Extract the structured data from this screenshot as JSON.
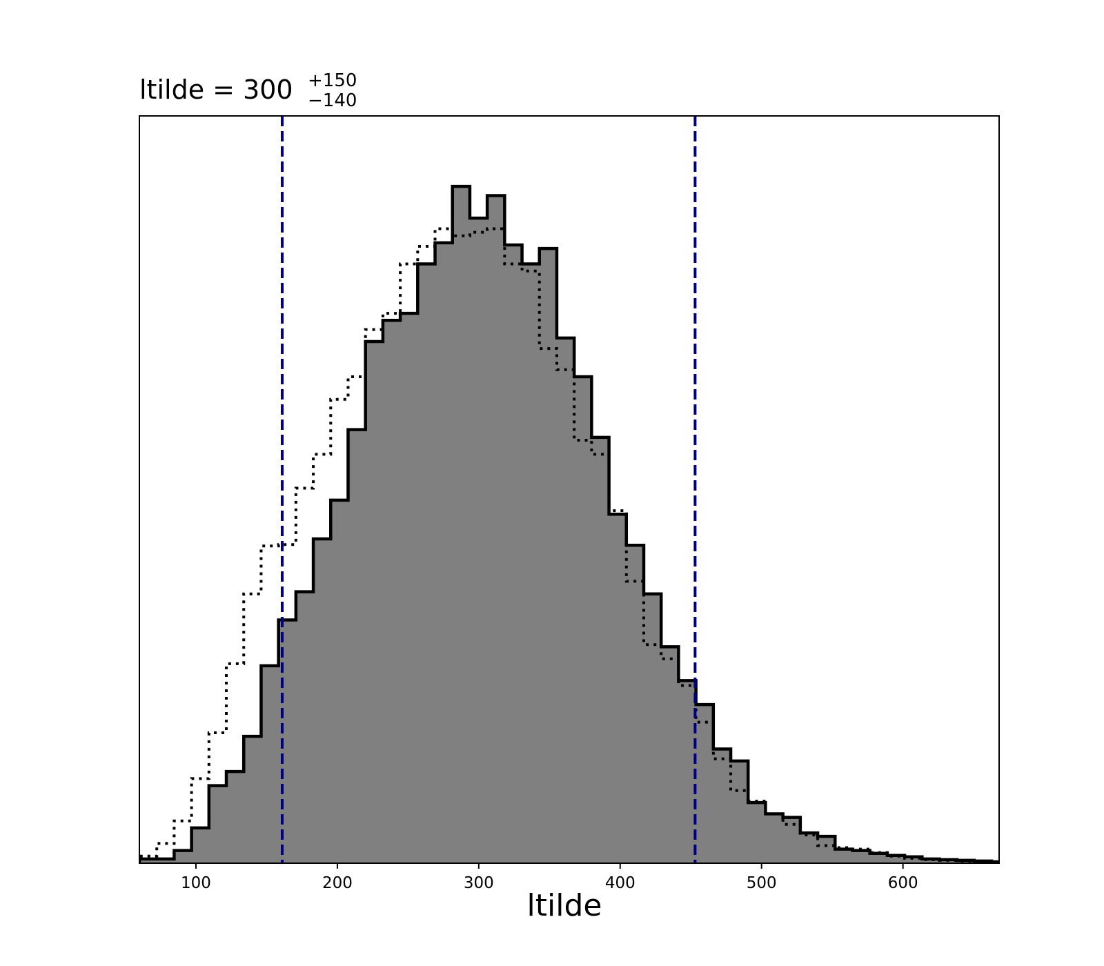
{
  "chart_data": {
    "type": "histogram",
    "title": {
      "text": "ltilde = 300",
      "sup": "+150",
      "sub": "−140"
    },
    "xlabel": "ltilde",
    "ylabel": "",
    "xlim": [
      60,
      668
    ],
    "ylim": [
      0,
      1.06
    ],
    "x_ticks": [
      100,
      200,
      300,
      400,
      500,
      600
    ],
    "y_ticks_visible": false,
    "grid": false,
    "bin_edges": [
      60,
      72.3,
      84.6,
      96.9,
      109.2,
      121.5,
      133.8,
      146.1,
      158.4,
      170.7,
      183,
      195.3,
      207.6,
      219.9,
      232.2,
      244.5,
      256.8,
      269.1,
      281.4,
      293.7,
      306,
      318.3,
      330.6,
      342.9,
      355.2,
      367.5,
      379.8,
      392.1,
      404.4,
      416.7,
      429,
      441.3,
      453.6,
      465.9,
      478.2,
      490.5,
      502.8,
      515.1,
      527.4,
      539.7,
      552,
      564.3,
      576.6,
      588.9,
      601.2,
      613.5,
      625.8,
      638.1,
      650.4,
      662.7,
      668
    ],
    "series": [
      {
        "style": "filled-step",
        "fill": "#808080",
        "edge": "#000000",
        "values": [
          0.006,
          0.006,
          0.018,
          0.05,
          0.11,
          0.13,
          0.18,
          0.28,
          0.345,
          0.385,
          0.46,
          0.515,
          0.615,
          0.74,
          0.77,
          0.78,
          0.85,
          0.88,
          0.96,
          0.915,
          0.947,
          0.877,
          0.85,
          0.872,
          0.745,
          0.69,
          0.604,
          0.495,
          0.451,
          0.382,
          0.307,
          0.259,
          0.225,
          0.162,
          0.145,
          0.086,
          0.07,
          0.065,
          0.043,
          0.038,
          0.02,
          0.018,
          0.014,
          0.011,
          0.009,
          0.006,
          0.005,
          0.004,
          0.003,
          0.002
        ]
      },
      {
        "style": "dotted-step",
        "edge": "#000000",
        "values": [
          0.01,
          0.028,
          0.06,
          0.12,
          0.185,
          0.283,
          0.382,
          0.45,
          0.452,
          0.532,
          0.58,
          0.658,
          0.69,
          0.757,
          0.78,
          0.85,
          0.875,
          0.9,
          0.89,
          0.895,
          0.9,
          0.85,
          0.84,
          0.73,
          0.7,
          0.6,
          0.58,
          0.5,
          0.4,
          0.31,
          0.29,
          0.252,
          0.2,
          0.148,
          0.103,
          0.088,
          0.07,
          0.055,
          0.04,
          0.025,
          0.022,
          0.02,
          0.015,
          0.01,
          0.007,
          0.005,
          0.004,
          0.003,
          0.002,
          0.001
        ]
      }
    ],
    "vlines": [
      {
        "x": 161,
        "style": "dashed",
        "color": "#000080"
      },
      {
        "x": 453,
        "style": "dashed",
        "color": "#000080"
      }
    ]
  }
}
